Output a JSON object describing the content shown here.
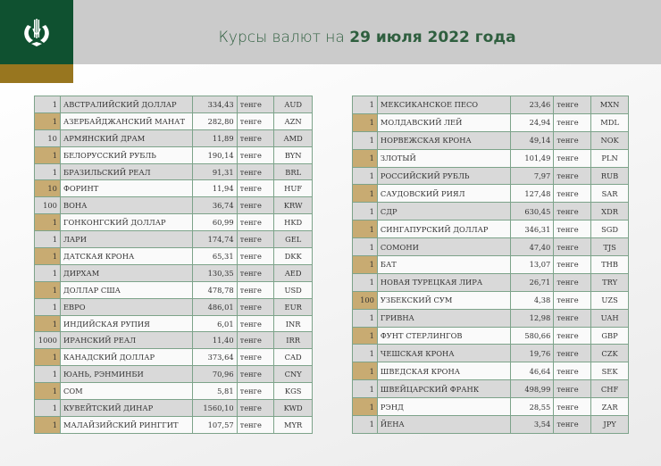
{
  "header": {
    "title_prefix": "Курсы валют на ",
    "title_date": "29 июля 2022 года"
  },
  "colors": {
    "green": "#0f5130",
    "gold": "#98761f",
    "row_gold": "#c8ab72",
    "row_gray": "#d9d9d9"
  },
  "unit": "тенге",
  "left_table": [
    [
      "1",
      "АВСТРАЛИЙСКИЙ ДОЛЛАР",
      "334,43",
      "AUD"
    ],
    [
      "1",
      "АЗЕРБАЙДЖАНСКИЙ МАНАТ",
      "282,80",
      "AZN"
    ],
    [
      "10",
      "АРМЯНСКИЙ  ДРАМ",
      "11,89",
      "AMD"
    ],
    [
      "1",
      "БЕЛОРУССКИЙ РУБЛЬ",
      "190,14",
      "BYN"
    ],
    [
      "1",
      "БРАЗИЛЬСКИЙ РЕАЛ",
      "91,31",
      "BRL"
    ],
    [
      "10",
      "ФОРИНТ",
      "11,94",
      "HUF"
    ],
    [
      "100",
      "ВОНА",
      "36,74",
      "KRW"
    ],
    [
      "1",
      "ГОНКОНГСКИЙ ДОЛЛАР",
      "60,99",
      "HKD"
    ],
    [
      "1",
      "ЛАРИ",
      "174,74",
      "GEL"
    ],
    [
      "1",
      "ДАТСКАЯ КРОНА",
      "65,31",
      "DKK"
    ],
    [
      "1",
      "ДИРХАМ",
      "130,35",
      "AED"
    ],
    [
      "1",
      "ДОЛЛАР США",
      "478,78",
      "USD"
    ],
    [
      "1",
      "ЕВРО",
      "486,01",
      "EUR"
    ],
    [
      "1",
      "ИНДИЙСКАЯ РУПИЯ",
      "6,01",
      "INR"
    ],
    [
      "1000",
      "ИРАНСКИЙ РЕАЛ",
      "11,40",
      "IRR"
    ],
    [
      "1",
      "КАНАДСКИЙ ДОЛЛАР",
      "373,64",
      "CAD"
    ],
    [
      "1",
      "ЮАНЬ, РЭНМИНБИ",
      "70,96",
      "CNY"
    ],
    [
      "1",
      "СОМ",
      "5,81",
      "KGS"
    ],
    [
      "1",
      "КУВЕЙТСКИЙ ДИНАР",
      "1560,10",
      "KWD"
    ],
    [
      "1",
      "МАЛАЙЗИЙСКИЙ РИНГГИТ",
      "107,57",
      "MYR"
    ]
  ],
  "right_table": [
    [
      "1",
      "МЕКСИКАНСКОЕ ПЕСО",
      "23,46",
      "MXN"
    ],
    [
      "1",
      "МОЛДАВСКИЙ ЛЕЙ",
      "24,94",
      "MDL"
    ],
    [
      "1",
      "НОРВЕЖСКАЯ КРОНА",
      "49,14",
      "NOK"
    ],
    [
      "1",
      "ЗЛОТЫЙ",
      "101,49",
      "PLN"
    ],
    [
      "1",
      "РОССИЙСКИЙ РУБЛЬ",
      "7,97",
      "RUB"
    ],
    [
      "1",
      "САУДОВСКИЙ РИЯЛ",
      "127,48",
      "SAR"
    ],
    [
      "1",
      "СДР",
      "630,45",
      "XDR"
    ],
    [
      "1",
      "СИНГАПУРСКИЙ ДОЛЛАР",
      "346,31",
      "SGD"
    ],
    [
      "1",
      "СОМОНИ",
      "47,40",
      "TJS"
    ],
    [
      "1",
      "БАТ",
      "13,07",
      "THB"
    ],
    [
      "1",
      "НОВАЯ ТУРЕЦКАЯ ЛИРА",
      "26,71",
      "TRY"
    ],
    [
      "100",
      "УЗБЕКСКИЙ СУМ",
      "4,38",
      "UZS"
    ],
    [
      "1",
      "ГРИВНА",
      "12,98",
      "UAH"
    ],
    [
      "1",
      "ФУНТ СТЕРЛИНГОВ",
      "580,66",
      "GBP"
    ],
    [
      "1",
      "ЧЕШСКАЯ КРОНА",
      "19,76",
      "CZK"
    ],
    [
      "1",
      "ШВЕДСКАЯ КРОНА",
      "46,64",
      "SEK"
    ],
    [
      "1",
      "ШВЕЙЦАРСКИЙ ФРАНК",
      "498,99",
      "CHF"
    ],
    [
      "1",
      "РЭНД",
      "28,55",
      "ZAR"
    ],
    [
      "1",
      "ЙЕНА",
      "3,54",
      "JPY"
    ]
  ]
}
